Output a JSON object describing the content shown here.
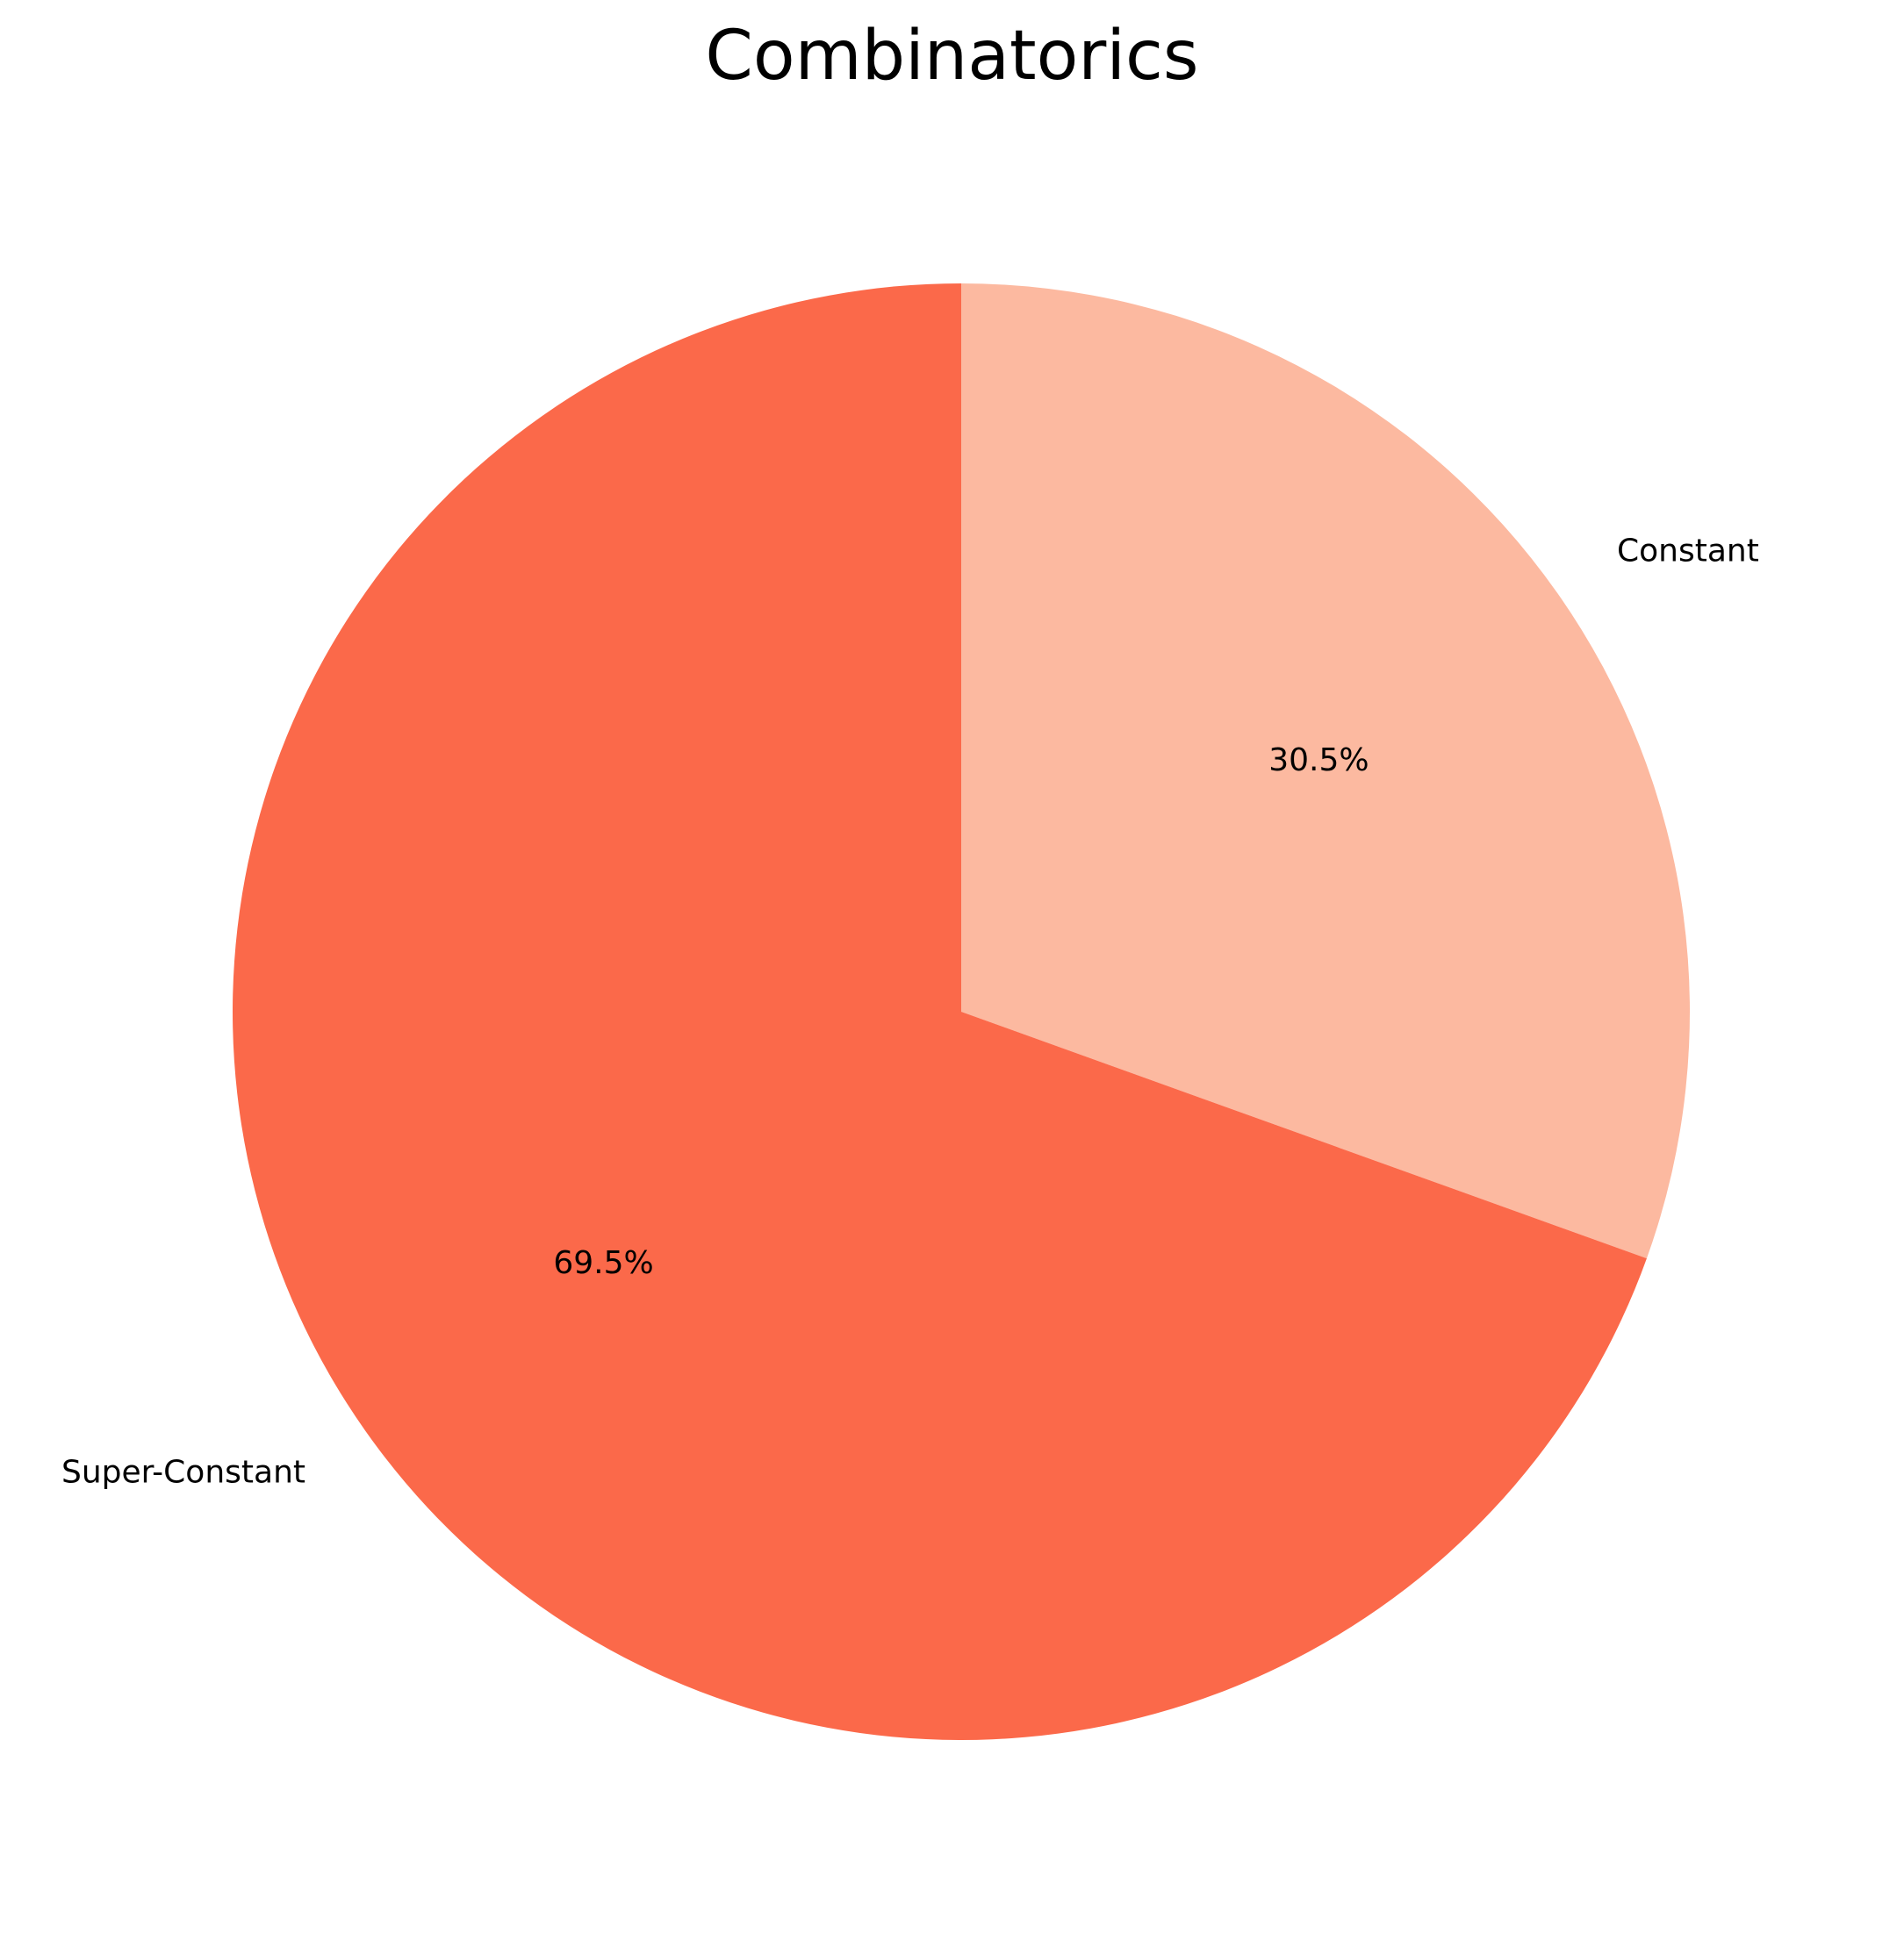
{
  "chart_data": {
    "type": "pie",
    "title": "Combinatorics",
    "slices": [
      {
        "label": "Constant",
        "value": 30.5,
        "pct_label": "30.5%",
        "color": "#fcb9a0"
      },
      {
        "label": "Super-Constant",
        "value": 69.5,
        "pct_label": "69.5%",
        "color": "#fb694a"
      }
    ],
    "start_angle_deg": 90,
    "direction": "clockwise",
    "legend": "none"
  }
}
